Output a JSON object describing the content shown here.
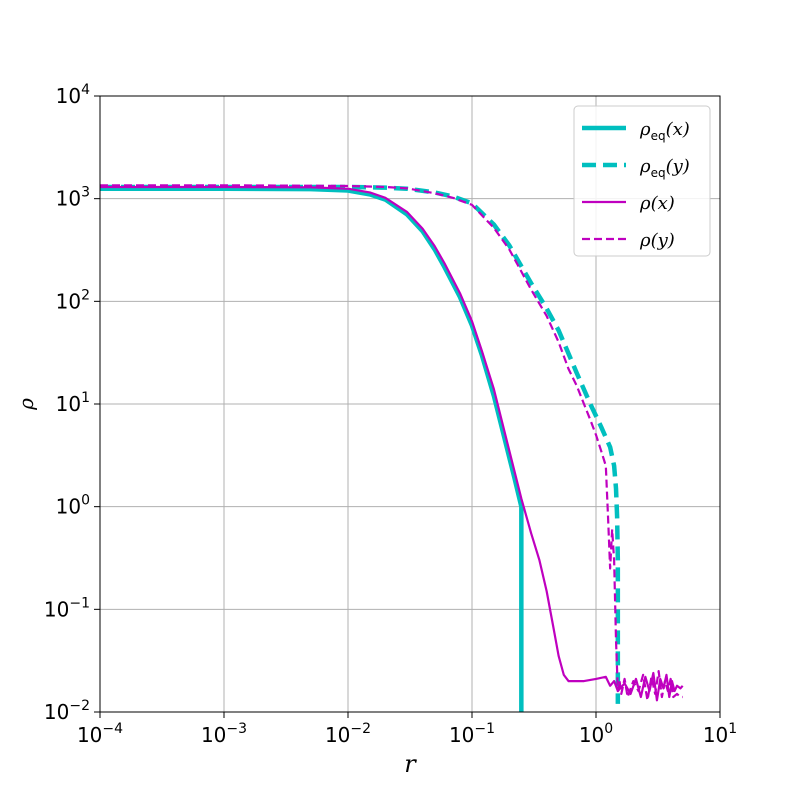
{
  "colors": {
    "eq": "#00bfbf",
    "dens": "#bf00bf",
    "grid": "#b0b0b0"
  },
  "chart_data": {
    "type": "line",
    "title": "",
    "xlabel": "r",
    "ylabel": "ρ",
    "xscale": "log",
    "yscale": "log",
    "xlim": [
      0.0001,
      10
    ],
    "ylim": [
      0.01,
      10000
    ],
    "grid": true,
    "legend_position": "top-right",
    "x_ticks": [
      {
        "value": 0.0001,
        "base": "10",
        "exp": "−4"
      },
      {
        "value": 0.001,
        "base": "10",
        "exp": "−3"
      },
      {
        "value": 0.01,
        "base": "10",
        "exp": "−2"
      },
      {
        "value": 0.1,
        "base": "10",
        "exp": "−1"
      },
      {
        "value": 1,
        "base": "10",
        "exp": "0"
      },
      {
        "value": 10,
        "base": "10",
        "exp": "1"
      }
    ],
    "y_ticks": [
      {
        "value": 0.01,
        "base": "10",
        "exp": "−2"
      },
      {
        "value": 0.1,
        "base": "10",
        "exp": "−1"
      },
      {
        "value": 1,
        "base": "10",
        "exp": "0"
      },
      {
        "value": 10,
        "base": "10",
        "exp": "1"
      },
      {
        "value": 100,
        "base": "10",
        "exp": "2"
      },
      {
        "value": 1000,
        "base": "10",
        "exp": "3"
      },
      {
        "value": 10000,
        "base": "10",
        "exp": "4"
      }
    ],
    "series": [
      {
        "name": "ρ_eq(x)",
        "label_main": "ρ",
        "label_sub": "eq",
        "label_arg": "(x)",
        "color": "eq",
        "style": "solid",
        "width": 4.5,
        "x": [
          0.0001,
          0.001,
          0.005,
          0.01,
          0.015,
          0.02,
          0.03,
          0.04,
          0.05,
          0.06,
          0.07,
          0.08,
          0.1,
          0.12,
          0.15,
          0.18,
          0.2,
          0.22,
          0.25,
          0.25
        ],
        "y": [
          1250,
          1250,
          1240,
          1200,
          1100,
          980,
          700,
          480,
          320,
          215,
          150,
          110,
          58,
          30,
          12,
          5,
          3,
          1.9,
          1.0,
          0.01
        ]
      },
      {
        "name": "ρ_eq(y)",
        "label_main": "ρ",
        "label_sub": "eq",
        "label_arg": "(y)",
        "color": "eq",
        "style": "dashed",
        "width": 4.5,
        "x": [
          0.0001,
          0.001,
          0.01,
          0.02,
          0.03,
          0.05,
          0.07,
          0.1,
          0.15,
          0.2,
          0.3,
          0.4,
          0.5,
          0.7,
          0.9,
          1.1,
          1.3,
          1.4,
          1.45,
          1.48,
          1.5,
          1.5
        ],
        "y": [
          1300,
          1300,
          1300,
          1280,
          1250,
          1150,
          1050,
          900,
          560,
          350,
          150,
          85,
          52,
          20,
          10,
          6,
          3.8,
          2.5,
          1.5,
          0.8,
          0.3,
          0.012
        ]
      },
      {
        "name": "ρ(x)",
        "label_main": "ρ",
        "label_sub": "",
        "label_arg": "(x)",
        "color": "dens",
        "style": "solid",
        "width": 2.2,
        "x": [
          0.0001,
          0.001,
          0.005,
          0.01,
          0.015,
          0.02,
          0.03,
          0.04,
          0.05,
          0.06,
          0.08,
          0.1,
          0.12,
          0.15,
          0.2,
          0.25,
          0.3,
          0.35,
          0.4,
          0.45,
          0.5,
          0.55,
          0.6,
          0.8,
          1.0,
          1.2,
          1.3,
          1.4,
          1.5,
          1.7,
          1.9,
          2.1,
          2.3,
          2.5,
          2.7,
          2.9,
          3.1,
          3.3,
          3.5,
          3.7,
          3.9,
          4.1,
          4.3,
          4.5,
          4.8,
          5.0
        ],
        "y": [
          1300,
          1300,
          1290,
          1250,
          1150,
          1020,
          740,
          510,
          345,
          235,
          120,
          64,
          33,
          14,
          3.5,
          1.2,
          0.55,
          0.3,
          0.15,
          0.07,
          0.035,
          0.023,
          0.02,
          0.02,
          0.021,
          0.022,
          0.018,
          0.02,
          0.016,
          0.019,
          0.015,
          0.021,
          0.014,
          0.022,
          0.016,
          0.024,
          0.013,
          0.021,
          0.017,
          0.023,
          0.014,
          0.02,
          0.016,
          0.018,
          0.017,
          0.018
        ]
      },
      {
        "name": "ρ(y)",
        "label_main": "ρ",
        "label_sub": "",
        "label_arg": "(y)",
        "color": "dens",
        "style": "dashed",
        "width": 2.2,
        "x": [
          0.0001,
          0.001,
          0.01,
          0.02,
          0.03,
          0.05,
          0.07,
          0.1,
          0.15,
          0.2,
          0.3,
          0.4,
          0.5,
          0.6,
          0.7,
          0.8,
          0.9,
          1.0,
          1.1,
          1.2,
          1.25,
          1.3,
          1.35,
          1.4,
          1.45,
          1.5,
          1.55,
          1.6,
          1.7,
          1.8,
          2.0,
          2.2,
          2.4,
          2.6,
          2.8,
          3.0,
          3.2,
          3.4,
          3.6,
          3.8,
          4.0,
          4.2,
          4.5,
          4.8,
          5.0
        ],
        "y": [
          1350,
          1350,
          1330,
          1300,
          1260,
          1130,
          1020,
          870,
          520,
          320,
          130,
          72,
          40,
          22,
          15,
          10,
          7,
          5,
          3.5,
          2.5,
          0.8,
          0.25,
          0.6,
          0.3,
          0.05,
          0.016,
          0.02,
          0.015,
          0.021,
          0.014,
          0.02,
          0.016,
          0.023,
          0.013,
          0.022,
          0.015,
          0.025,
          0.014,
          0.02,
          0.016,
          0.021,
          0.014,
          0.015,
          0.014,
          0.014
        ]
      }
    ]
  }
}
